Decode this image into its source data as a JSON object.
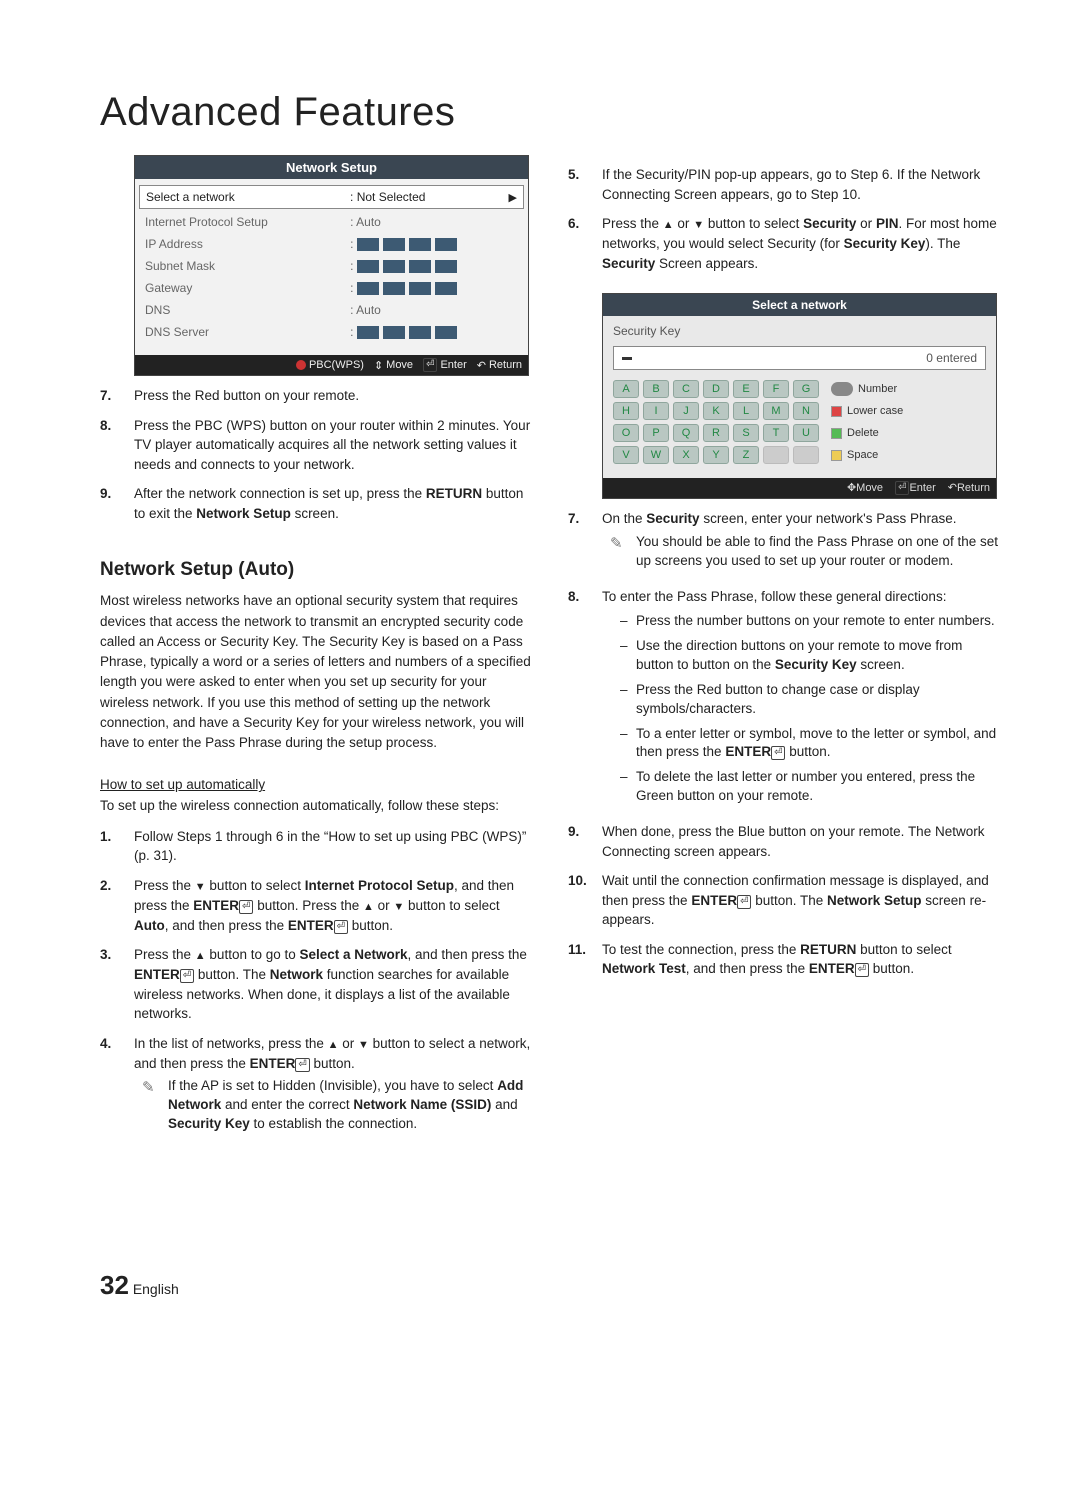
{
  "title": "Advanced Features",
  "page_footer": {
    "number": "32",
    "lang": "English"
  },
  "network_panel": {
    "title": "Network Setup",
    "rows": [
      {
        "label": "Select a network",
        "value": ": Not Selected",
        "selected": true
      },
      {
        "label": "Internet Protocol Setup",
        "value": ": Auto"
      },
      {
        "label": "IP Address",
        "ip": true
      },
      {
        "label": "Subnet Mask",
        "ip": true
      },
      {
        "label": "Gateway",
        "ip": true
      },
      {
        "label": "DNS",
        "value": ": Auto"
      },
      {
        "label": "DNS Server",
        "ip": true
      }
    ],
    "footer": {
      "pbc": "PBC(WPS)",
      "move": "Move",
      "enter": "Enter",
      "return": "Return"
    }
  },
  "left_steps_a": [
    {
      "num": "7",
      "text": "Press the Red button on your remote."
    },
    {
      "num": "8",
      "text": "Press the PBC (WPS) button on your router within 2 minutes. Your TV player automatically acquires all the network setting values it needs and connects to your network."
    },
    {
      "num": "9",
      "html": "After the network connection is set up, press the <span class='b'>RETURN</span> button to exit the <span class='b'>Network Setup</span> screen."
    }
  ],
  "left_section_title": "Network Setup (Auto)",
  "left_section_para": "Most wireless networks have an optional security system that requires devices that access the network to transmit an encrypted security code called an Access or Security Key. The Security Key is based on a Pass Phrase, typically a word or a series of letters and numbers of a specified length you were asked to enter when you set up security for your wireless network.  If you use this method of setting up the network connection, and have a Security Key for your wireless network, you will have to enter the Pass Phrase during the setup process.",
  "left_subhead": "How to set up automatically",
  "left_sub_para": "To set up the wireless connection automatically, follow these steps:",
  "left_steps_b": [
    {
      "num": "1",
      "html": "Follow Steps 1 through 6 in the “How to set up using PBC (WPS)” (p. 31)."
    },
    {
      "num": "2",
      "html": "Press the <span class='tri-down'></span> button to select <span class='b'>Internet Protocol Setup</span>, and then press the <span class='b'>ENTER</span><span class='enterglyph'>⏎</span> button. Press the <span class='tri-up'></span> or <span class='tri-down'></span> button to select <span class='b'>Auto</span>, and then press the <span class='b'>ENTER</span><span class='enterglyph'>⏎</span> button."
    },
    {
      "num": "3",
      "html": "Press the <span class='tri-up'></span> button to go to <span class='b'>Select a Network</span>, and then press the <span class='b'>ENTER</span><span class='enterglyph'>⏎</span> button. The <span class='b'>Network</span> function searches for available wireless networks. When done, it displays a list of the available networks."
    },
    {
      "num": "4",
      "html": "In the list of networks, press the <span class='tri-up'></span> or <span class='tri-down'></span> button to select a network, and then press the <span class='b'>ENTER</span><span class='enterglyph'>⏎</span> button.",
      "note": "If the AP is set to Hidden (Invisible), you have to select <span class='b'>Add Network</span> and enter the correct <span class='b'>Network Name (SSID)</span> and <span class='b'>Security Key</span> to establish the connection."
    }
  ],
  "right_steps_a": [
    {
      "num": "5",
      "html": "If the Security/PIN pop-up appears, go to Step 6. If the Network Connecting Screen appears, go to Step 10."
    },
    {
      "num": "6",
      "html": "Press the <span class='tri-up'></span> or <span class='tri-down'></span> button to select <span class='b'>Security</span> or <span class='b'>PIN</span>. For most home networks, you would select Security (for <span class='b'>Security Key</span>). The <span class='b'>Security</span> Screen appears."
    }
  ],
  "select_panel": {
    "title": "Select a network",
    "seckey": "Security Key",
    "entered": "0 entered",
    "rows": [
      [
        "A",
        "B",
        "C",
        "D",
        "E",
        "F",
        "G"
      ],
      [
        "H",
        "I",
        "J",
        "K",
        "L",
        "M",
        "N"
      ],
      [
        "O",
        "P",
        "Q",
        "R",
        "S",
        "T",
        "U"
      ],
      [
        "V",
        "W",
        "X",
        "Y",
        "Z",
        "",
        ""
      ]
    ],
    "legends": [
      "Number",
      "Lower case",
      "Delete",
      "Space"
    ],
    "footer": {
      "move": "Move",
      "enter": "Enter",
      "return": "Return"
    }
  },
  "right_steps_b": [
    {
      "num": "7",
      "html": "On the <span class='b'>Security</span> screen, enter your network's Pass Phrase.",
      "note": "You should be able to find the Pass Phrase on one of the set up screens you used to set up your router or modem."
    },
    {
      "num": "8",
      "html": "To enter the Pass Phrase, follow these general directions:",
      "subs": [
        "Press the number buttons on your remote to enter numbers.",
        "Use the direction buttons on your remote to move from button to button on the <span class='b'>Security Key</span> screen.",
        "Press the Red button to change case or display symbols/characters.",
        "To a enter letter or symbol, move to the letter or symbol, and then press the <span class='b'>ENTER</span><span class='enterglyph'>⏎</span> button.",
        "To delete the last letter or number you entered, press the Green button on your remote."
      ]
    },
    {
      "num": "9",
      "html": "When done, press the Blue button on your remote. The Network Connecting screen appears."
    },
    {
      "num": "10",
      "html": "Wait until the connection confirmation message is displayed, and then press the <span class='b'>ENTER</span><span class='enterglyph'>⏎</span> button. The <span class='b'>Network Setup</span> screen re-appears."
    },
    {
      "num": "11",
      "html": "To test the connection, press the <span class='b'>RETURN</span> button to select <span class='b'>Network Test</span>, and then press the <span class='b'>ENTER</span><span class='enterglyph'>⏎</span> button."
    }
  ]
}
